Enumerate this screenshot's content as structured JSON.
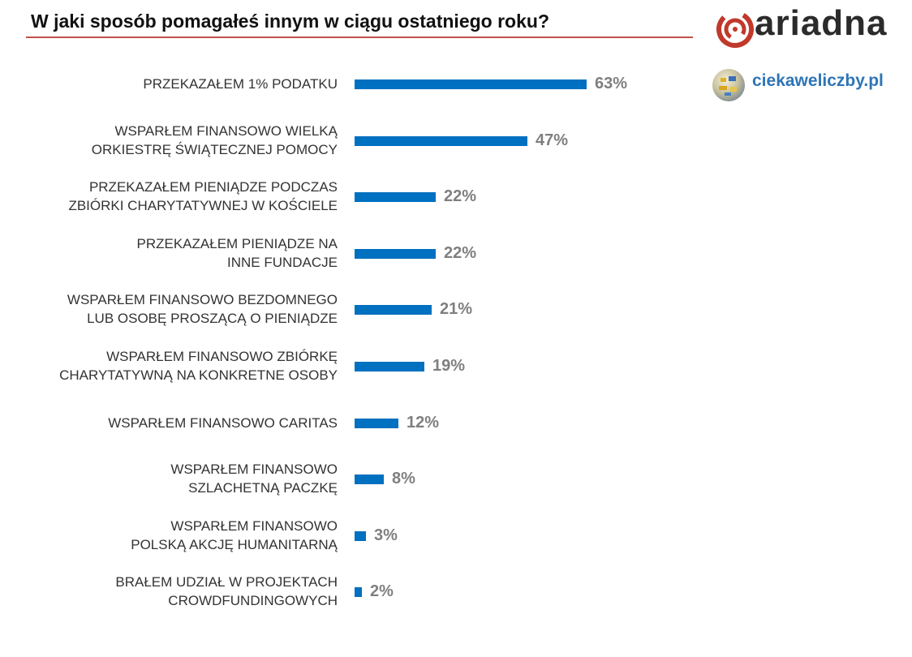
{
  "header": {
    "title": "W jaki sposób pomagałeś innym w ciągu ostatniego roku?",
    "brand": "ariadna",
    "site": "ciekaweliczby.pl"
  },
  "colors": {
    "bar": "#0070c0",
    "title_rule": "#c0504d",
    "brand_red": "#c0392b",
    "value_label": "#7f7f7f"
  },
  "chart_data": {
    "type": "bar",
    "orientation": "horizontal",
    "title": "W jaki sposób pomagałeś innym w ciągu ostatniego roku?",
    "xlabel": "",
    "ylabel": "",
    "xlim": [
      0,
      63
    ],
    "grid": false,
    "legend": "none",
    "unit": "%",
    "categories": [
      [
        "PRZEKAZAŁEM 1% PODATKU"
      ],
      [
        "WSPARŁEM FINANSOWO WIELKĄ",
        "ORKIESTRĘ ŚWIĄTECZNEJ POMOCY"
      ],
      [
        "PRZEKAZAŁEM PIENIĄDZE PODCZAS",
        "ZBIÓRKI CHARYTATYWNEJ W KOŚCIELE"
      ],
      [
        "PRZEKAZAŁEM PIENIĄDZE NA",
        "INNE FUNDACJE"
      ],
      [
        "WSPARŁEM FINANSOWO BEZDOMNEGO",
        "LUB OSOBĘ PROSZĄCĄ O PIENIĄDZE"
      ],
      [
        "WSPARŁEM FINANSOWO ZBIÓRKĘ",
        "CHARYTATYWNĄ NA KONKRETNE OSOBY"
      ],
      [
        "WSPARŁEM FINANSOWO CARITAS"
      ],
      [
        "WSPARŁEM FINANSOWO",
        "SZLACHETNĄ PACZKĘ"
      ],
      [
        "WSPARŁEM FINANSOWO",
        "POLSKĄ AKCJĘ HUMANITARNĄ"
      ],
      [
        "BRAŁEM UDZIAŁ W PROJEKTACH",
        "CROWDFUNDINGOWYCH"
      ]
    ],
    "values": [
      63,
      47,
      22,
      22,
      21,
      19,
      12,
      8,
      3,
      2
    ],
    "value_labels": [
      "63%",
      "47%",
      "22%",
      "22%",
      "21%",
      "19%",
      "12%",
      "8%",
      "3%",
      "2%"
    ]
  }
}
